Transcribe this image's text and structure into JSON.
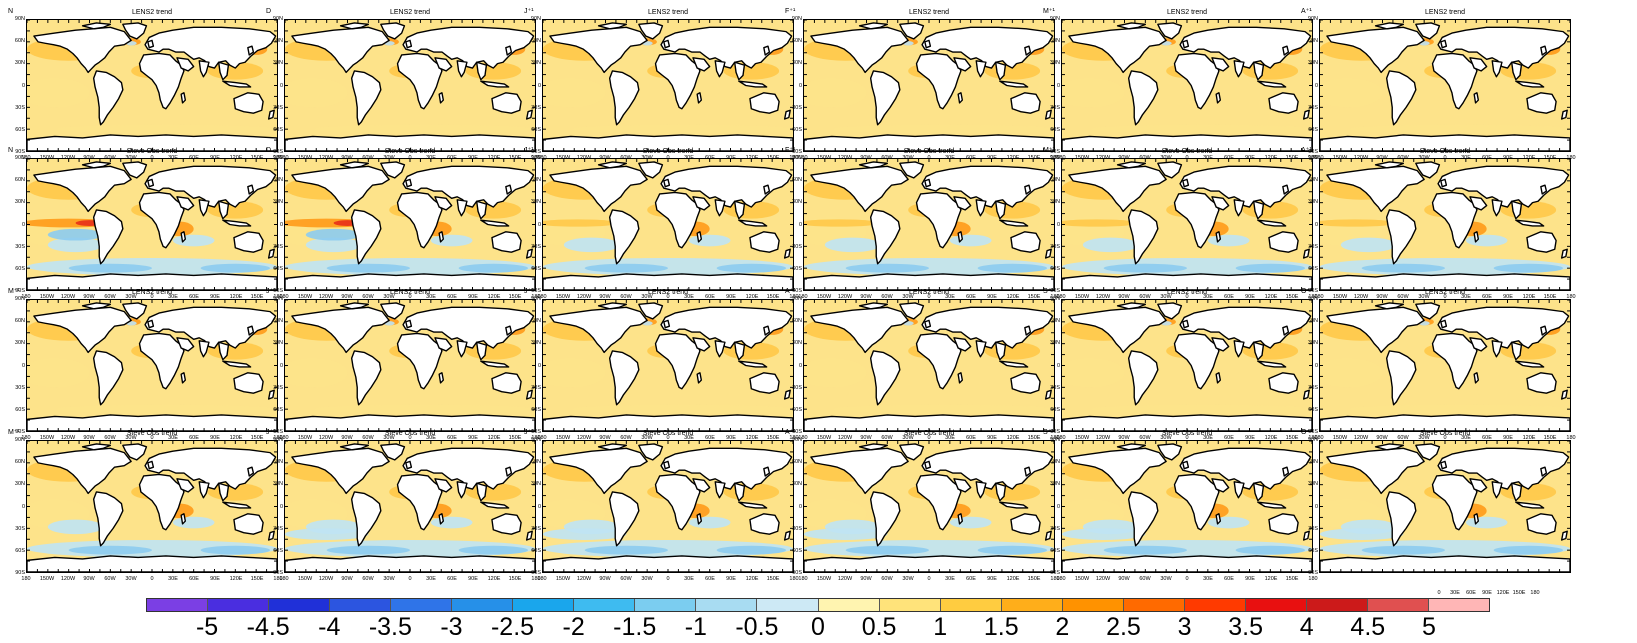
{
  "figure": {
    "row_titles": [
      "LENS2 trend",
      "Steve Obs trend",
      "LENS2 trend",
      "Steve Obs trend"
    ],
    "panel_labels": [
      [
        "N",
        "D",
        "J⁺¹",
        "F⁺¹",
        "M⁺¹",
        "A⁺¹"
      ],
      [
        "N",
        "D",
        "J⁺¹",
        "F⁺¹",
        "M⁺¹",
        "A⁺¹"
      ],
      [
        "M⁺¹",
        "J⁺¹",
        "J⁺¹",
        "A⁺¹",
        "S⁺¹",
        "O⁺¹"
      ],
      [
        "M⁺¹",
        "J⁺¹",
        "J⁺¹",
        "A⁺¹",
        "S⁺¹",
        "O⁺¹"
      ]
    ],
    "lat_ticks": [
      "90N",
      "60N",
      "30N",
      "0",
      "30S",
      "60S",
      "90S"
    ],
    "lon_ticks": [
      "180",
      "150W",
      "120W",
      "90W",
      "60W",
      "30W",
      "0",
      "30E",
      "60E",
      "90E",
      "120E",
      "150E",
      "180"
    ],
    "bottom_right_lon_ticks": [
      "0",
      "30E",
      "60E",
      "90E",
      "120E",
      "150E",
      "180"
    ]
  },
  "colorbar": {
    "labels": [
      "-5",
      "-4.5",
      "-4",
      "-3.5",
      "-3",
      "-2.5",
      "-2",
      "-1.5",
      "-1",
      "-0.5",
      "0",
      "0.5",
      "1",
      "1.5",
      "2",
      "2.5",
      "3",
      "3.5",
      "4",
      "4.5",
      "5"
    ],
    "colors": [
      "#7b3fe4",
      "#4a2ee0",
      "#2030d8",
      "#2c55e0",
      "#2f74e8",
      "#2690e8",
      "#1aa6ec",
      "#3ebbf0",
      "#7bcdf0",
      "#a8dcf2",
      "#cde9f5",
      "#fff4b0",
      "#ffe37a",
      "#ffcc40",
      "#ffae1a",
      "#ff9200",
      "#ff6a00",
      "#ff3a00",
      "#e81010",
      "#cc1a1a",
      "#e05050",
      "#ffb6b6"
    ]
  },
  "map_style": {
    "base_color": "#fde38a",
    "warm_color": "#ffc848",
    "hot_color": "#ff9a18",
    "extreme_color": "#e8301a",
    "cool_color": "#bfe3f4",
    "cold_color": "#8ccbef",
    "land_color": "#ffffff"
  }
}
